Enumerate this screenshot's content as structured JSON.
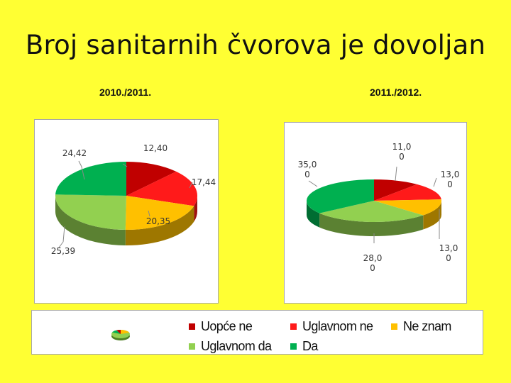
{
  "page": {
    "title": "Broj sanitarnih čvorova je dovoljan"
  },
  "chart_data": [
    {
      "type": "pie",
      "title": "2010./2011.",
      "categories": [
        "Uopće ne",
        "Uglavnom ne",
        "Ne znam",
        "Uglavnom da",
        "Da"
      ],
      "values": [
        12.4,
        17.44,
        20.35,
        25.39,
        24.42
      ],
      "labels": [
        "12,40",
        "17,44",
        "20,35",
        "25,39",
        "24,42"
      ],
      "colors": [
        "#C00000",
        "#FF1A1A",
        "#FFC000",
        "#92D050",
        "#00B050"
      ]
    },
    {
      "type": "pie",
      "title": "2011./2012.",
      "categories": [
        "Uopće ne",
        "Uglavnom ne",
        "Ne znam",
        "Uglavnom da",
        "Da"
      ],
      "values": [
        11.0,
        13.0,
        13.0,
        28.0,
        35.0
      ],
      "labels": [
        [
          "11,0",
          "0"
        ],
        [
          "13,0",
          "0"
        ],
        [
          "13,0",
          "0"
        ],
        [
          "28,0",
          "0"
        ],
        [
          "35,0",
          "0"
        ]
      ],
      "colors": [
        "#C00000",
        "#FF1A1A",
        "#FFC000",
        "#92D050",
        "#00B050"
      ]
    }
  ],
  "legend": {
    "items": [
      {
        "label": "Uopće ne",
        "color": "#C00000"
      },
      {
        "label": "Uglavnom ne",
        "color": "#FF1A1A"
      },
      {
        "label": "Ne znam",
        "color": "#FFC000"
      },
      {
        "label": "Uglavnom da",
        "color": "#92D050"
      },
      {
        "label": "Da",
        "color": "#00B050"
      }
    ]
  }
}
